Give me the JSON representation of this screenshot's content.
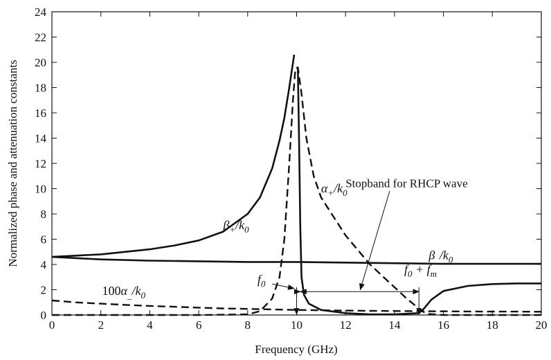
{
  "chart_data": {
    "type": "line",
    "title": "",
    "xlabel": "Frequency (GHz)",
    "ylabel": "Normalized phase and attenuation constants",
    "xlim": [
      0,
      20
    ],
    "ylim": [
      0,
      24
    ],
    "xticks": [
      0,
      2,
      4,
      6,
      8,
      10,
      12,
      14,
      16,
      18,
      20
    ],
    "yticks": [
      0,
      2,
      4,
      6,
      8,
      10,
      12,
      14,
      16,
      18,
      20,
      22,
      24
    ],
    "grid": false,
    "legend": "none",
    "series": [
      {
        "name": "β+/k0",
        "style": "solid",
        "x": [
          0,
          2,
          4,
          5,
          6,
          7,
          8,
          8.5,
          9,
          9.3,
          9.5,
          9.7,
          9.8,
          9.9
        ],
        "y": [
          4.6,
          4.8,
          5.2,
          5.5,
          5.9,
          6.6,
          8.0,
          9.3,
          11.6,
          13.8,
          15.6,
          18.0,
          19.3,
          20.6
        ]
      },
      {
        "name": "",
        "style": "solid",
        "x": [
          10.05,
          10.1,
          10.15,
          10.2,
          10.3,
          10.5,
          11,
          12,
          13,
          14,
          14.5,
          15,
          15.2,
          15.5,
          16,
          17,
          18,
          19,
          20
        ],
        "y": [
          19.5,
          14.0,
          7.0,
          3.0,
          1.6,
          0.9,
          0.4,
          0.15,
          0.05,
          0.05,
          0.1,
          0.15,
          0.5,
          1.2,
          1.9,
          2.3,
          2.45,
          2.5,
          2.5
        ]
      },
      {
        "name": "β_/k0",
        "style": "solid",
        "x": [
          0,
          2,
          4,
          6,
          8,
          10,
          12,
          14,
          16,
          18,
          20
        ],
        "y": [
          4.6,
          4.4,
          4.3,
          4.25,
          4.2,
          4.2,
          4.15,
          4.1,
          4.05,
          4.05,
          4.05
        ]
      },
      {
        "name": "α+/k0",
        "style": "dashed",
        "x": [
          0,
          2,
          4,
          6,
          7,
          8,
          8.5,
          9,
          9.3,
          9.5,
          9.7,
          9.85,
          9.95,
          10.05,
          10.2,
          10.4,
          10.7,
          11,
          12,
          13,
          14,
          14.5,
          15,
          15.3,
          16,
          18,
          20
        ],
        "y": [
          0,
          0,
          0,
          0,
          0.02,
          0.05,
          0.3,
          1.3,
          3.0,
          6.0,
          12.0,
          17.0,
          19.5,
          19.6,
          17.5,
          14.0,
          11.0,
          9.3,
          6.3,
          4.0,
          2.2,
          1.3,
          0.5,
          0.1,
          0,
          0,
          0
        ]
      },
      {
        "name": "100α_/k0",
        "style": "dashed",
        "x": [
          0,
          1,
          2,
          3,
          4,
          5,
          6,
          7,
          8,
          9,
          10,
          11,
          12,
          13,
          14,
          15,
          16,
          17,
          18,
          19,
          20
        ],
        "y": [
          1.15,
          1.0,
          0.9,
          0.8,
          0.72,
          0.65,
          0.58,
          0.52,
          0.48,
          0.44,
          0.4,
          0.37,
          0.35,
          0.33,
          0.32,
          0.3,
          0.29,
          0.28,
          0.27,
          0.27,
          0.26
        ]
      }
    ],
    "annotations": {
      "beta_plus": {
        "base": "β",
        "sub": "+",
        "suffix": "/k",
        "sub2": "0",
        "at": [
          7.0,
          6.8
        ]
      },
      "beta_minus": {
        "base": "β",
        "sub": "_",
        "suffix": "/k",
        "sub2": "0",
        "at": [
          15.4,
          4.4
        ]
      },
      "alpha_plus": {
        "base": "α",
        "sub": "+",
        "suffix": "/k",
        "sub2": "0",
        "at": [
          11.0,
          9.7
        ]
      },
      "alpha_minus": {
        "prefix": "100",
        "base": "α",
        "sub": "_",
        "suffix": "/k",
        "sub2": "0",
        "at": [
          2.05,
          1.6
        ]
      },
      "f0": {
        "base": "f",
        "sub": "0",
        "at": [
          8.4,
          2.5
        ]
      },
      "f0fm": {
        "base": "f",
        "sub": "0",
        "mid": " + f",
        "sub2": "m",
        "at": [
          14.4,
          3.3
        ]
      },
      "stopband": {
        "text": "Stopband for RHCP wave",
        "at": [
          12.0,
          10.1
        ]
      }
    },
    "markers": {
      "f0_line_x": 10.0,
      "fm_line_x": 15.0,
      "stopband_arrow": {
        "x1": 10.15,
        "x2": 15.0,
        "y": 1.85
      }
    }
  }
}
